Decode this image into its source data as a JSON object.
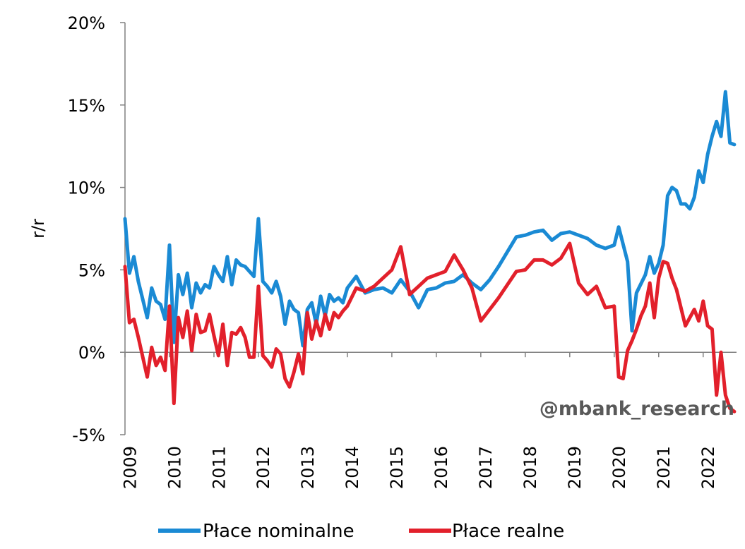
{
  "chart_data": {
    "type": "line",
    "title": "",
    "xlabel": "",
    "ylabel": "r/r",
    "ylim": [
      -5,
      20
    ],
    "y_ticks": [
      "-5%",
      "0%",
      "5%",
      "10%",
      "15%",
      "20%"
    ],
    "y_tick_values": [
      -5,
      0,
      5,
      10,
      15,
      20
    ],
    "x_tick_labels": [
      "2009",
      "2010",
      "2011",
      "2012",
      "2013",
      "2014",
      "2015",
      "2016",
      "2017",
      "2018",
      "2019",
      "2020",
      "2021",
      "2022"
    ],
    "x_range": [
      2009.0,
      2022.75
    ],
    "grid": false,
    "legend_position": "bottom",
    "watermark": "@mbank_research",
    "series": [
      {
        "name": "Płace nominalne",
        "color": "#1a8ad4",
        "x": [
          2009.0,
          2009.1,
          2009.2,
          2009.3,
          2009.5,
          2009.6,
          2009.7,
          2009.8,
          2009.9,
          2010.0,
          2010.1,
          2010.2,
          2010.3,
          2010.4,
          2010.5,
          2010.6,
          2010.7,
          2010.8,
          2010.9,
          2011.0,
          2011.1,
          2011.2,
          2011.3,
          2011.4,
          2011.5,
          2011.6,
          2011.7,
          2011.8,
          2011.9,
          2012.0,
          2012.1,
          2012.2,
          2012.3,
          2012.4,
          2012.5,
          2012.6,
          2012.7,
          2012.8,
          2012.9,
          2013.0,
          2013.1,
          2013.2,
          2013.3,
          2013.4,
          2013.5,
          2013.6,
          2013.7,
          2013.8,
          2013.9,
          2014.0,
          2014.2,
          2014.4,
          2014.6,
          2014.8,
          2015.0,
          2015.2,
          2015.4,
          2015.6,
          2015.8,
          2016.0,
          2016.2,
          2016.4,
          2016.6,
          2016.8,
          2017.0,
          2017.2,
          2017.4,
          2017.6,
          2017.8,
          2018.0,
          2018.2,
          2018.4,
          2018.6,
          2018.8,
          2019.0,
          2019.2,
          2019.4,
          2019.6,
          2019.8,
          2020.0,
          2020.1,
          2020.3,
          2020.4,
          2020.5,
          2020.7,
          2020.8,
          2020.9,
          2021.0,
          2021.1,
          2021.2,
          2021.3,
          2021.4,
          2021.5,
          2021.6,
          2021.7,
          2021.8,
          2021.9,
          2022.0,
          2022.1,
          2022.2,
          2022.3,
          2022.4,
          2022.5,
          2022.6,
          2022.7
        ],
        "values": [
          8.1,
          4.8,
          5.8,
          4.3,
          2.1,
          3.9,
          3.1,
          2.9,
          2.0,
          6.5,
          0.6,
          4.7,
          3.5,
          4.8,
          2.7,
          4.2,
          3.6,
          4.1,
          3.9,
          5.2,
          4.7,
          4.3,
          5.8,
          4.1,
          5.6,
          5.3,
          5.2,
          4.9,
          4.6,
          8.1,
          4.3,
          4.0,
          3.6,
          4.3,
          3.4,
          1.7,
          3.1,
          2.6,
          2.4,
          0.4,
          2.6,
          3.0,
          1.7,
          3.4,
          2.2,
          3.5,
          3.1,
          3.3,
          3.0,
          3.9,
          4.6,
          3.6,
          3.8,
          3.9,
          3.6,
          4.4,
          3.7,
          2.7,
          3.8,
          3.9,
          4.2,
          4.3,
          4.7,
          4.2,
          3.8,
          4.4,
          5.2,
          6.1,
          7.0,
          7.1,
          7.3,
          7.4,
          6.8,
          7.2,
          7.3,
          7.1,
          6.9,
          6.5,
          6.3,
          6.5,
          7.6,
          5.5,
          1.3,
          3.6,
          4.7,
          5.8,
          4.8,
          5.4,
          6.5,
          9.5,
          10.0,
          9.8,
          9.0,
          9.0,
          8.7,
          9.4,
          11.0,
          10.3,
          12.0,
          13.1,
          14.0,
          13.1,
          15.8,
          12.7,
          12.6
        ]
      },
      {
        "name": "Płace realne",
        "color": "#e2202b",
        "x": [
          2009.0,
          2009.1,
          2009.2,
          2009.3,
          2009.4,
          2009.5,
          2009.6,
          2009.7,
          2009.8,
          2009.9,
          2010.0,
          2010.1,
          2010.2,
          2010.3,
          2010.4,
          2010.5,
          2010.6,
          2010.7,
          2010.8,
          2010.9,
          2011.0,
          2011.1,
          2011.2,
          2011.3,
          2011.4,
          2011.5,
          2011.6,
          2011.7,
          2011.8,
          2011.9,
          2012.0,
          2012.1,
          2012.2,
          2012.3,
          2012.4,
          2012.5,
          2012.6,
          2012.7,
          2012.8,
          2012.9,
          2013.0,
          2013.1,
          2013.2,
          2013.3,
          2013.4,
          2013.5,
          2013.6,
          2013.7,
          2013.8,
          2013.9,
          2014.0,
          2014.2,
          2014.4,
          2014.6,
          2014.8,
          2015.0,
          2015.2,
          2015.4,
          2015.6,
          2015.8,
          2016.0,
          2016.2,
          2016.4,
          2016.6,
          2016.8,
          2017.0,
          2017.2,
          2017.4,
          2017.6,
          2017.8,
          2018.0,
          2018.2,
          2018.4,
          2018.6,
          2018.8,
          2019.0,
          2019.2,
          2019.4,
          2019.6,
          2019.8,
          2020.0,
          2020.1,
          2020.2,
          2020.3,
          2020.4,
          2020.5,
          2020.6,
          2020.7,
          2020.8,
          2020.9,
          2021.0,
          2021.1,
          2021.2,
          2021.3,
          2021.4,
          2021.5,
          2021.6,
          2021.7,
          2021.8,
          2021.9,
          2022.0,
          2022.1,
          2022.2,
          2022.3,
          2022.4,
          2022.5,
          2022.6,
          2022.7
        ],
        "values": [
          5.2,
          1.8,
          2.0,
          0.9,
          -0.3,
          -1.5,
          0.3,
          -0.8,
          -0.3,
          -1.1,
          2.8,
          -3.1,
          2.1,
          0.9,
          2.5,
          0.1,
          2.3,
          1.2,
          1.3,
          2.3,
          1.0,
          -0.2,
          1.7,
          -0.8,
          1.2,
          1.1,
          1.5,
          0.9,
          -0.3,
          -0.3,
          4.0,
          -0.2,
          -0.5,
          -0.9,
          0.2,
          -0.1,
          -1.6,
          -2.1,
          -1.2,
          -0.1,
          -1.3,
          2.4,
          0.8,
          1.9,
          1.0,
          2.3,
          1.4,
          2.4,
          2.1,
          2.5,
          2.8,
          3.9,
          3.7,
          4.0,
          4.5,
          5.0,
          6.4,
          3.5,
          4.0,
          4.5,
          4.7,
          4.9,
          5.9,
          5.0,
          3.9,
          1.9,
          2.6,
          3.3,
          4.1,
          4.9,
          5.0,
          5.6,
          5.6,
          5.3,
          5.7,
          6.6,
          4.2,
          3.5,
          4.0,
          2.7,
          2.8,
          -1.5,
          -1.6,
          0.1,
          0.7,
          1.4,
          2.2,
          2.8,
          4.2,
          2.1,
          4.5,
          5.5,
          5.4,
          4.5,
          3.8,
          2.7,
          1.6,
          2.1,
          2.6,
          1.9,
          3.1,
          1.6,
          1.4,
          -2.6,
          0.0,
          -2.6,
          -3.4,
          -3.6
        ]
      }
    ]
  }
}
